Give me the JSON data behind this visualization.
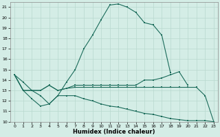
{
  "xlabel": "Humidex (Indice chaleur)",
  "bg_color": "#d4ede6",
  "grid_color": "#b8d8cf",
  "line_color": "#1a6b5a",
  "xlim": [
    -0.5,
    23.5
  ],
  "ylim": [
    10,
    21.5
  ],
  "xticks": [
    0,
    1,
    2,
    3,
    4,
    5,
    6,
    7,
    8,
    9,
    10,
    11,
    12,
    13,
    14,
    15,
    16,
    17,
    18,
    19,
    20,
    21,
    22,
    23
  ],
  "yticks": [
    10,
    11,
    12,
    13,
    14,
    15,
    16,
    17,
    18,
    19,
    20,
    21
  ],
  "line1_x": [
    0,
    1,
    2,
    3,
    4,
    5,
    6,
    7,
    8,
    9,
    10,
    11,
    12,
    13,
    14,
    15,
    16,
    17,
    18
  ],
  "line1_y": [
    14.5,
    13.8,
    13.0,
    12.5,
    11.7,
    12.5,
    13.8,
    15.0,
    17.0,
    18.3,
    19.8,
    21.2,
    21.3,
    21.0,
    20.5,
    19.5,
    19.3,
    18.3,
    14.7
  ],
  "line2_x": [
    0,
    1,
    2,
    3,
    4,
    5,
    6,
    7,
    8,
    9,
    10,
    11,
    12,
    13,
    14,
    15,
    16,
    17,
    18,
    19,
    20
  ],
  "line2_y": [
    14.5,
    13.0,
    13.0,
    13.0,
    13.5,
    13.0,
    13.2,
    13.5,
    13.5,
    13.5,
    13.5,
    13.5,
    13.5,
    13.5,
    13.5,
    14.0,
    14.0,
    14.2,
    14.5,
    14.8,
    13.5
  ],
  "line3_x": [
    0,
    1,
    2,
    3,
    4,
    5,
    6,
    7,
    8,
    9,
    10,
    11,
    12,
    13,
    14,
    15,
    16,
    17,
    18,
    19,
    20,
    21,
    22,
    23
  ],
  "line3_y": [
    14.5,
    13.0,
    13.0,
    13.0,
    13.5,
    13.0,
    13.2,
    13.3,
    13.3,
    13.3,
    13.3,
    13.3,
    13.3,
    13.3,
    13.3,
    13.3,
    13.3,
    13.3,
    13.3,
    13.3,
    13.3,
    13.3,
    12.5,
    10.0
  ],
  "line4_x": [
    0,
    1,
    2,
    3,
    4,
    5,
    6,
    7,
    8,
    9,
    10,
    11,
    12,
    13,
    14,
    15,
    16,
    17,
    18,
    19,
    20,
    21,
    22,
    23
  ],
  "line4_y": [
    14.5,
    13.0,
    12.2,
    11.5,
    11.7,
    12.5,
    12.5,
    12.5,
    12.2,
    12.0,
    11.7,
    11.5,
    11.4,
    11.2,
    11.0,
    10.8,
    10.7,
    10.5,
    10.3,
    10.2,
    10.1,
    10.1,
    10.1,
    10.0
  ]
}
